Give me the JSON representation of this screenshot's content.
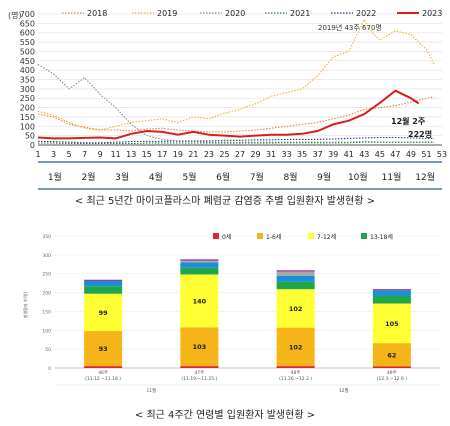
{
  "chart_data": [
    {
      "type": "line",
      "y_unit": "(명)",
      "ylim": [
        0,
        700
      ],
      "y_ticks": [
        0,
        50,
        100,
        150,
        200,
        250,
        300,
        350,
        400,
        450,
        500,
        550,
        600,
        650,
        700
      ],
      "x_ticks": [
        1,
        3,
        5,
        7,
        9,
        11,
        13,
        15,
        17,
        19,
        21,
        23,
        25,
        27,
        29,
        31,
        33,
        35,
        37,
        39,
        41,
        43,
        45,
        47,
        49,
        51,
        53
      ],
      "xlim": [
        1,
        53
      ],
      "months": [
        "1월",
        "2월",
        "3월",
        "4월",
        "5월",
        "6월",
        "7월",
        "8월",
        "9월",
        "10월",
        "11월",
        "12월"
      ],
      "grid": true,
      "legend_position": "top",
      "series": [
        {
          "name": "2018",
          "color": "#e8823a",
          "style": "dotted",
          "x": [
            1,
            3,
            5,
            7,
            9,
            11,
            13,
            15,
            17,
            19,
            21,
            23,
            25,
            27,
            29,
            31,
            33,
            35,
            37,
            39,
            41,
            43,
            45,
            47,
            49,
            51,
            52
          ],
          "values": [
            165,
            150,
            110,
            95,
            80,
            80,
            75,
            85,
            90,
            80,
            75,
            70,
            70,
            75,
            80,
            90,
            100,
            110,
            120,
            140,
            160,
            190,
            200,
            210,
            230,
            250,
            255
          ]
        },
        {
          "name": "2019",
          "color": "#f2b12c",
          "style": "dotted",
          "x": [
            1,
            3,
            5,
            7,
            9,
            11,
            13,
            15,
            17,
            19,
            21,
            23,
            25,
            27,
            29,
            31,
            33,
            35,
            37,
            39,
            41,
            43,
            44,
            45,
            47,
            49,
            51,
            52
          ],
          "values": [
            180,
            160,
            120,
            90,
            80,
            100,
            120,
            130,
            140,
            120,
            150,
            140,
            170,
            190,
            220,
            260,
            280,
            300,
            370,
            470,
            500,
            670,
            600,
            560,
            610,
            590,
            510,
            430
          ]
        },
        {
          "name": "2020",
          "color": "#7a8fa3",
          "style": "dotted",
          "x": [
            1,
            3,
            5,
            7,
            9,
            11,
            13,
            15,
            17,
            19,
            21,
            23,
            25,
            27,
            29,
            31,
            33,
            35,
            37,
            39,
            41,
            43,
            45,
            47,
            49,
            51,
            52
          ],
          "values": [
            430,
            380,
            300,
            360,
            270,
            200,
            110,
            50,
            30,
            20,
            20,
            15,
            15,
            15,
            15,
            15,
            15,
            15,
            15,
            15,
            15,
            20,
            15,
            15,
            15,
            15,
            15
          ]
        },
        {
          "name": "2021",
          "color": "#2e8b3c",
          "style": "dotted",
          "x": [
            1,
            3,
            5,
            7,
            9,
            11,
            13,
            15,
            17,
            19,
            21,
            23,
            25,
            27,
            29,
            31,
            33,
            35,
            37,
            39,
            41,
            43,
            45,
            47,
            49,
            51,
            52
          ],
          "values": [
            10,
            10,
            8,
            8,
            8,
            8,
            8,
            10,
            10,
            10,
            10,
            10,
            10,
            10,
            10,
            10,
            12,
            12,
            12,
            12,
            12,
            15,
            15,
            15,
            15,
            15,
            15
          ]
        },
        {
          "name": "2022",
          "color": "#2b3a8c",
          "style": "dotted",
          "x": [
            1,
            3,
            5,
            7,
            9,
            11,
            13,
            15,
            17,
            19,
            21,
            23,
            25,
            27,
            29,
            31,
            33,
            35,
            37,
            39,
            41,
            43,
            45,
            47,
            49,
            51,
            52
          ],
          "values": [
            20,
            18,
            15,
            12,
            12,
            15,
            18,
            20,
            20,
            22,
            22,
            22,
            25,
            25,
            28,
            28,
            30,
            30,
            30,
            32,
            35,
            38,
            40,
            40,
            38,
            35,
            35
          ]
        },
        {
          "name": "2023",
          "color": "#d91e1e",
          "style": "solid",
          "x": [
            1,
            3,
            5,
            7,
            9,
            11,
            13,
            15,
            17,
            19,
            21,
            23,
            25,
            27,
            29,
            31,
            33,
            35,
            37,
            39,
            41,
            43,
            45,
            47,
            49,
            50
          ],
          "values": [
            40,
            35,
            35,
            38,
            40,
            35,
            60,
            75,
            70,
            55,
            70,
            55,
            50,
            45,
            50,
            55,
            55,
            60,
            75,
            110,
            130,
            165,
            225,
            290,
            250,
            222
          ]
        }
      ],
      "annotations": [
        "2019년 43주 670명",
        "12월 2주",
        "222명"
      ]
    },
    {
      "type": "bar",
      "stacked": true,
      "ylim": [
        0,
        350
      ],
      "y_ticks": [
        0,
        50,
        100,
        150,
        200,
        250,
        300,
        350
      ],
      "ylabel": "발생환자 수(명)",
      "legend_position": "top",
      "categories": [
        "46주\n(11.12.~11.18.)",
        "47주\n(11.19.~11.25.)",
        "48주\n(11.26.~12.2.)",
        "49주\n(12.3.~12.9.)"
      ],
      "month_groups": [
        "11월",
        "12월"
      ],
      "series": [
        {
          "name": "0세",
          "color": "#e0262b",
          "values": [
            5,
            5,
            5,
            4
          ]
        },
        {
          "name": "1-6세",
          "color": "#f5b518",
          "values": [
            93,
            103,
            102,
            62
          ]
        },
        {
          "name": "7-12세",
          "color": "#ffff33",
          "values": [
            99,
            140,
            102,
            105
          ]
        },
        {
          "name": "13-18세",
          "color": "#20a64a",
          "values": [
            20,
            18,
            20,
            20
          ]
        },
        {
          "name": "",
          "color": "#1a8ed8",
          "values": [
            14,
            14,
            15,
            15
          ]
        },
        {
          "name": "",
          "color": "#a8a8a8",
          "values": [
            0,
            5,
            12,
            0
          ]
        },
        {
          "name": "",
          "color": "#8b2a8a",
          "values": [
            3,
            3,
            3,
            3
          ]
        }
      ]
    }
  ],
  "captions": {
    "chart1": "< 최근 5년간 마이코플라스마 폐렴균 감염증 주별 입원환자 발생현황 >",
    "chart2": "< 최근 4주간 연령별 입원환자 발생현황 >"
  },
  "colors": {
    "background": "#ffffff",
    "grid": "#e6e6e6",
    "axis": "#555555",
    "x_band": "#2a5e8c"
  }
}
